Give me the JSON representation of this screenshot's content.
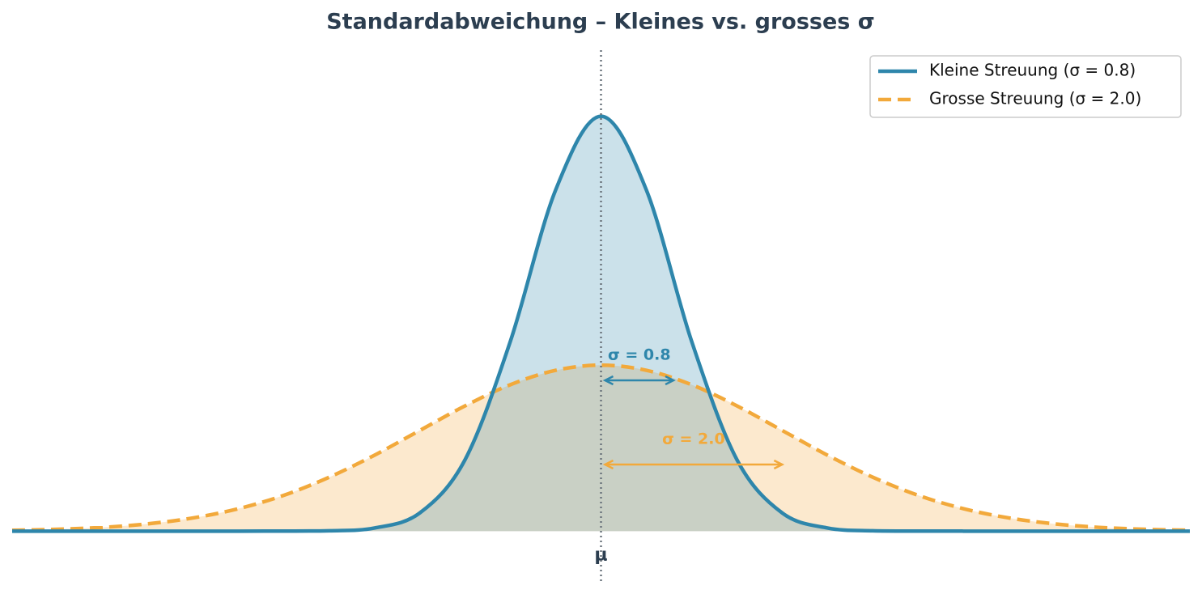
{
  "chart_data": {
    "type": "line",
    "title": "Standardabweichung – Kleines vs. grosses σ",
    "x": [
      -6.5,
      -6,
      -5.5,
      -5,
      -4.5,
      -4,
      -3.5,
      -3,
      -2.5,
      -2,
      -1.5,
      -1,
      -0.5,
      0,
      0.5,
      1,
      1.5,
      2,
      2.5,
      3,
      3.5,
      4,
      4.5,
      5,
      5.5,
      6,
      6.5
    ],
    "xlim": [
      -6.5,
      6.5
    ],
    "ylim": [
      -0.06,
      0.58
    ],
    "xticks": [
      {
        "value": 0,
        "label": "μ"
      }
    ],
    "mean": 0,
    "legend": "upper right",
    "series": [
      {
        "name": "Kleine Streuung (σ = 0.8)",
        "color": "#2e86ab",
        "dash": false,
        "sigma": 0.8,
        "annotation": "σ = 0.8",
        "values": [
          0,
          0,
          0,
          0,
          0,
          0,
          3.5e-05,
          0.00044,
          0.00378,
          0.0219,
          0.086,
          0.2283,
          0.4102,
          0.4987,
          0.4102,
          0.2283,
          0.086,
          0.0219,
          0.00378,
          0.00044,
          3.5e-05,
          0,
          0,
          0,
          0,
          0,
          0
        ]
      },
      {
        "name": "Grosse Streuung (σ = 2.0)",
        "color": "#f2a93b",
        "dash": true,
        "sigma": 2.0,
        "annotation": "σ = 2.0",
        "values": [
          0.001,
          0.0022,
          0.0045,
          0.0088,
          0.0159,
          0.027,
          0.0431,
          0.0648,
          0.0913,
          0.121,
          0.1506,
          0.176,
          0.1933,
          0.1995,
          0.1933,
          0.176,
          0.1506,
          0.121,
          0.0913,
          0.0648,
          0.0431,
          0.027,
          0.0159,
          0.0088,
          0.0045,
          0.0022,
          0.001
        ]
      }
    ]
  }
}
